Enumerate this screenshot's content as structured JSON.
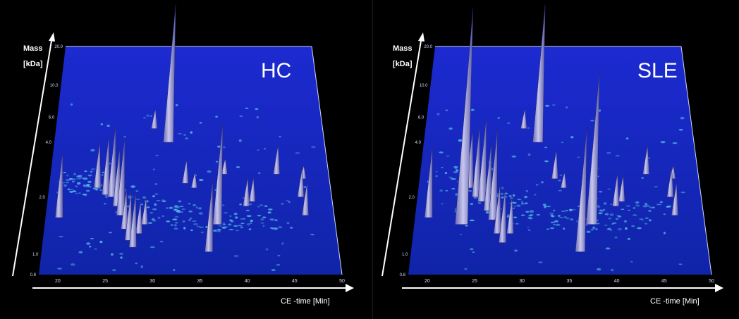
{
  "colors": {
    "background": "#000000",
    "plane_top": "#1c2ad0",
    "plane_bottom": "#1024a8",
    "axis": "#ffffff",
    "peak": "#c8c8ee",
    "spot": "#57c0e8"
  },
  "chart_data": [
    {
      "type": "scatter",
      "title": "HC",
      "xlabel": "CE -time [Min]",
      "ylabel_line1": "Mass",
      "ylabel_line2": "[kDa]",
      "xlim": [
        18,
        50
      ],
      "ylim_label": [
        "0.8",
        "20.0"
      ],
      "x_ticks": [
        "20",
        "25",
        "30",
        "35",
        "40",
        "45",
        "50"
      ],
      "y_ticks": [
        "0.8",
        "1.0",
        "2.0",
        "4.0",
        "6.0",
        "10.0",
        "20.0"
      ],
      "peaks": [
        {
          "x": 19.5,
          "y": 0.25,
          "h": 0.5
        },
        {
          "x": 23.5,
          "y": 0.38,
          "h": 0.35
        },
        {
          "x": 24.5,
          "y": 0.35,
          "h": 0.45
        },
        {
          "x": 25.2,
          "y": 0.34,
          "h": 0.55
        },
        {
          "x": 25.8,
          "y": 0.3,
          "h": 0.45
        },
        {
          "x": 26.3,
          "y": 0.26,
          "h": 0.6
        },
        {
          "x": 26.8,
          "y": 0.2,
          "h": 0.3
        },
        {
          "x": 27.3,
          "y": 0.15,
          "h": 0.38
        },
        {
          "x": 27.8,
          "y": 0.12,
          "h": 0.42
        },
        {
          "x": 28.4,
          "y": 0.18,
          "h": 0.25
        },
        {
          "x": 29.0,
          "y": 0.22,
          "h": 0.2
        },
        {
          "x": 31.5,
          "y": 0.58,
          "h": 1.05
        },
        {
          "x": 29.8,
          "y": 0.64,
          "h": 0.15
        },
        {
          "x": 33.5,
          "y": 0.4,
          "h": 0.18
        },
        {
          "x": 34.5,
          "y": 0.38,
          "h": 0.12
        },
        {
          "x": 36.0,
          "y": 0.1,
          "h": 0.55
        },
        {
          "x": 37.0,
          "y": 0.22,
          "h": 0.78
        },
        {
          "x": 38.0,
          "y": 0.44,
          "h": 0.12
        },
        {
          "x": 40.3,
          "y": 0.3,
          "h": 0.22
        },
        {
          "x": 41.0,
          "y": 0.32,
          "h": 0.18
        },
        {
          "x": 44.0,
          "y": 0.44,
          "h": 0.22
        },
        {
          "x": 46.5,
          "y": 0.34,
          "h": 0.22
        },
        {
          "x": 47.0,
          "y": 0.42,
          "h": 0.1
        },
        {
          "x": 46.8,
          "y": 0.26,
          "h": 0.25
        }
      ]
    },
    {
      "type": "scatter",
      "title": "SLE",
      "xlabel": "CE -time [Min]",
      "ylabel_line1": "Mass",
      "ylabel_line2": "[kDa]",
      "xlim": [
        18,
        50
      ],
      "ylim_label": [
        "0.8",
        "20.0"
      ],
      "x_ticks": [
        "20",
        "25",
        "30",
        "35",
        "40",
        "45",
        "50"
      ],
      "y_ticks": [
        "0.8",
        "1.0",
        "2.0",
        "4.0",
        "6.0",
        "10.0",
        "20.0"
      ],
      "peaks": [
        {
          "x": 19.5,
          "y": 0.25,
          "h": 0.55
        },
        {
          "x": 23.2,
          "y": 0.22,
          "h": 1.65
        },
        {
          "x": 23.8,
          "y": 0.38,
          "h": 0.45
        },
        {
          "x": 24.6,
          "y": 0.34,
          "h": 0.55
        },
        {
          "x": 25.3,
          "y": 0.32,
          "h": 0.65
        },
        {
          "x": 26.0,
          "y": 0.28,
          "h": 0.52
        },
        {
          "x": 26.6,
          "y": 0.24,
          "h": 0.7
        },
        {
          "x": 27.2,
          "y": 0.18,
          "h": 0.38
        },
        {
          "x": 27.8,
          "y": 0.14,
          "h": 0.42
        },
        {
          "x": 28.6,
          "y": 0.18,
          "h": 0.28
        },
        {
          "x": 31.5,
          "y": 0.58,
          "h": 1.05
        },
        {
          "x": 29.8,
          "y": 0.64,
          "h": 0.15
        },
        {
          "x": 33.5,
          "y": 0.42,
          "h": 0.22
        },
        {
          "x": 34.5,
          "y": 0.38,
          "h": 0.12
        },
        {
          "x": 36.2,
          "y": 0.1,
          "h": 0.95
        },
        {
          "x": 37.5,
          "y": 0.22,
          "h": 1.18
        },
        {
          "x": 38.2,
          "y": 0.46,
          "h": 0.12
        },
        {
          "x": 40.3,
          "y": 0.3,
          "h": 0.25
        },
        {
          "x": 41.0,
          "y": 0.32,
          "h": 0.2
        },
        {
          "x": 44.0,
          "y": 0.44,
          "h": 0.22
        },
        {
          "x": 46.5,
          "y": 0.34,
          "h": 0.22
        },
        {
          "x": 47.0,
          "y": 0.42,
          "h": 0.1
        },
        {
          "x": 46.8,
          "y": 0.26,
          "h": 0.25
        }
      ]
    }
  ]
}
